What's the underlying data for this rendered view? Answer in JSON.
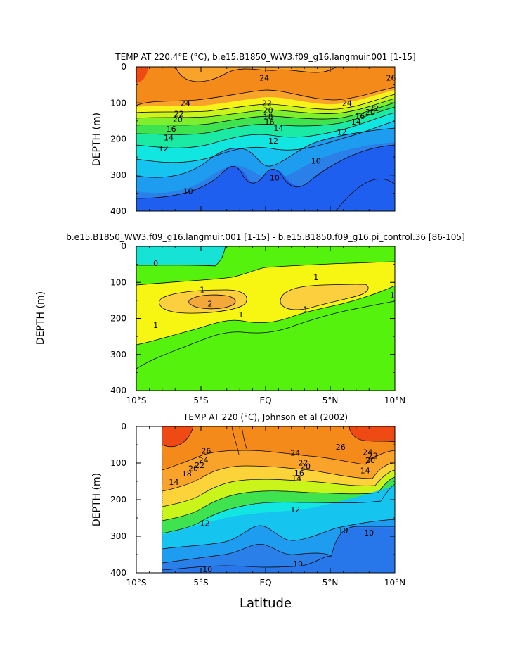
{
  "figure_xlabel": "Latitude",
  "colors": {
    "t_10": "#1f5ff0",
    "t_11": "#2b7fe8",
    "t_12": "#1e9cf0",
    "t_13": "#16c4f0",
    "t_14": "#12e6e0",
    "t_15": "#1aeaa4",
    "t_16": "#3fe34f",
    "t_18": "#7fef2d",
    "t_20": "#c9f51a",
    "t_22": "#f7f21a",
    "t_23": "#fdd33a",
    "t_24": "#f9a32b",
    "t_26": "#f38a1a",
    "t_27": "#f04a14",
    "d_0": "#17e2d6",
    "d_05": "#55f20e",
    "d_1": "#f7f512",
    "d_15": "#fbcf3d",
    "d_2": "#f4a83a"
  },
  "chart_data": [
    {
      "type": "contour",
      "title": "TEMP AT 220.4°E (°C), b.e15.B1850_WW3.f09_g16.langmuir.001 [1-15]",
      "xlabel": "",
      "ylabel": "DEPTH (m)",
      "x_ticks": [
        "10°S",
        "5°S",
        "EQ",
        "5°N",
        "10°N"
      ],
      "x_range": [
        -10,
        10
      ],
      "y_ticks": [
        "0",
        "100",
        "200",
        "300",
        "400"
      ],
      "y_range": [
        0,
        400
      ],
      "contour_labels": [
        {
          "text": "24",
          "lat": -0.1,
          "depth": 30
        },
        {
          "text": "26",
          "lat": 9.7,
          "depth": 30
        },
        {
          "text": "24",
          "lat": -6.2,
          "depth": 100
        },
        {
          "text": "22",
          "lat": 0.1,
          "depth": 100
        },
        {
          "text": "24",
          "lat": 6.3,
          "depth": 100
        },
        {
          "text": "22",
          "lat": -6.7,
          "depth": 130
        },
        {
          "text": "20",
          "lat": 0.2,
          "depth": 120
        },
        {
          "text": "22",
          "lat": 8.4,
          "depth": 115
        },
        {
          "text": "20",
          "lat": -6.8,
          "depth": 145
        },
        {
          "text": "18",
          "lat": 0.2,
          "depth": 138
        },
        {
          "text": "20",
          "lat": 8.1,
          "depth": 125
        },
        {
          "text": "16",
          "lat": -7.3,
          "depth": 172
        },
        {
          "text": "16",
          "lat": 0.3,
          "depth": 152
        },
        {
          "text": "16",
          "lat": 7.3,
          "depth": 137
        },
        {
          "text": "14",
          "lat": -7.5,
          "depth": 196
        },
        {
          "text": "14",
          "lat": 1.0,
          "depth": 170
        },
        {
          "text": "14",
          "lat": 7.0,
          "depth": 152
        },
        {
          "text": "12",
          "lat": -7.9,
          "depth": 226
        },
        {
          "text": "12",
          "lat": 0.6,
          "depth": 205
        },
        {
          "text": "12",
          "lat": 5.9,
          "depth": 180
        },
        {
          "text": "10",
          "lat": 0.7,
          "depth": 307
        },
        {
          "text": "10",
          "lat": 3.9,
          "depth": 260
        },
        {
          "text": "10",
          "lat": -6.0,
          "depth": 344
        }
      ]
    },
    {
      "type": "contour",
      "title": "b.e15.B1850_WW3.f09_g16.langmuir.001 [1-15] - b.e15.B1850.f09_g16.pi_control.36 [86-105]",
      "xlabel": "",
      "ylabel": "DEPTH (m)",
      "x_ticks": [
        "10°S",
        "5°S",
        "EQ",
        "5°N",
        "10°N"
      ],
      "x_range": [
        -10,
        10
      ],
      "y_ticks": [
        "0",
        "100",
        "200",
        "300",
        "400"
      ],
      "y_range": [
        0,
        400
      ],
      "contour_labels": [
        {
          "text": "0",
          "lat": -8.5,
          "depth": 47
        },
        {
          "text": "1",
          "lat": 3.9,
          "depth": 86
        },
        {
          "text": "1",
          "lat": -4.9,
          "depth": 120
        },
        {
          "text": "2",
          "lat": -4.3,
          "depth": 159
        },
        {
          "text": "1",
          "lat": -1.9,
          "depth": 189
        },
        {
          "text": "1",
          "lat": 3.1,
          "depth": 175
        },
        {
          "text": "1",
          "lat": 9.8,
          "depth": 136
        },
        {
          "text": "1",
          "lat": -8.5,
          "depth": 219
        }
      ]
    },
    {
      "type": "contour",
      "title": "TEMP AT 220 (°C), Johnson et al (2002)",
      "xlabel": "Latitude",
      "ylabel": "DEPTH (m)",
      "x_ticks": [
        "10°S",
        "5°S",
        "EQ",
        "5°N",
        "10°N"
      ],
      "x_range": [
        -10,
        10
      ],
      "y_ticks": [
        "0",
        "100",
        "200",
        "300",
        "400"
      ],
      "y_range": [
        0,
        400
      ],
      "data_lat_range": [
        -8,
        10
      ],
      "contour_labels": [
        {
          "text": "26",
          "lat": -4.6,
          "depth": 66
        },
        {
          "text": "24",
          "lat": 2.3,
          "depth": 72
        },
        {
          "text": "26",
          "lat": 5.8,
          "depth": 56
        },
        {
          "text": "24",
          "lat": -4.8,
          "depth": 91
        },
        {
          "text": "22",
          "lat": -5.1,
          "depth": 106
        },
        {
          "text": "20",
          "lat": -5.6,
          "depth": 114
        },
        {
          "text": "22",
          "lat": 2.9,
          "depth": 99
        },
        {
          "text": "20",
          "lat": 3.1,
          "depth": 109
        },
        {
          "text": "18",
          "lat": -6.1,
          "depth": 129
        },
        {
          "text": "16",
          "lat": 2.6,
          "depth": 127
        },
        {
          "text": "14",
          "lat": -7.1,
          "depth": 152
        },
        {
          "text": "14",
          "lat": 2.4,
          "depth": 141
        },
        {
          "text": "14",
          "lat": 7.7,
          "depth": 120
        },
        {
          "text": "24",
          "lat": 7.9,
          "depth": 70
        },
        {
          "text": "22",
          "lat": 8.3,
          "depth": 80
        },
        {
          "text": "20",
          "lat": 8.1,
          "depth": 92
        },
        {
          "text": "12",
          "lat": 2.3,
          "depth": 227
        },
        {
          "text": "12",
          "lat": -4.7,
          "depth": 264
        },
        {
          "text": "10",
          "lat": 8.0,
          "depth": 290
        },
        {
          "text": "10",
          "lat": 6.0,
          "depth": 285
        },
        {
          "text": "10",
          "lat": -4.5,
          "depth": 390
        },
        {
          "text": "10",
          "lat": 2.5,
          "depth": 375
        }
      ]
    }
  ]
}
